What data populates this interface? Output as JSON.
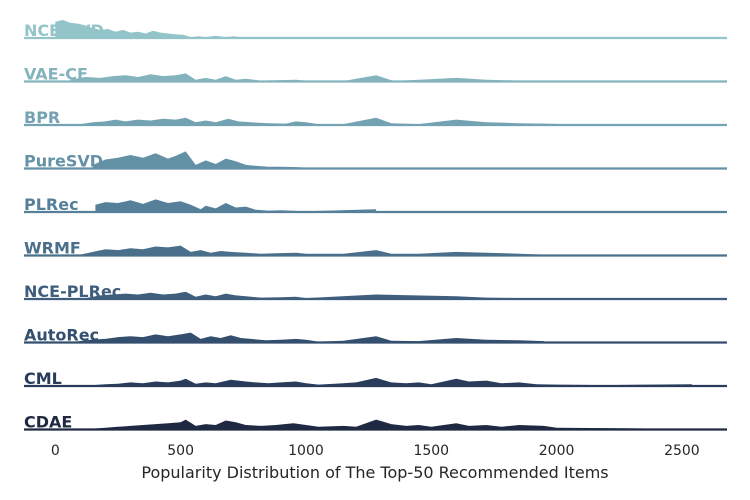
{
  "chart_data": {
    "type": "area",
    "subtype": "ridgeline",
    "xlabel": "Popularity Distribution of The Top-50 Recommended Items",
    "xlim": [
      -125,
      2680
    ],
    "xticks": [
      0,
      500,
      1000,
      1500,
      2000,
      2500
    ],
    "grid": false,
    "series": [
      {
        "name": "NCE-SVD",
        "color": "#93c4c9",
        "points": [
          [
            0,
            0.9
          ],
          [
            30,
            1.0
          ],
          [
            60,
            0.85
          ],
          [
            90,
            0.8
          ],
          [
            120,
            0.7
          ],
          [
            150,
            0.55
          ],
          [
            180,
            0.45
          ],
          [
            210,
            0.5
          ],
          [
            240,
            0.35
          ],
          [
            270,
            0.45
          ],
          [
            300,
            0.3
          ],
          [
            330,
            0.35
          ],
          [
            360,
            0.25
          ],
          [
            390,
            0.4
          ],
          [
            420,
            0.3
          ],
          [
            450,
            0.25
          ],
          [
            480,
            0.2
          ],
          [
            510,
            0.18
          ],
          [
            540,
            0.05
          ],
          [
            570,
            0.1
          ],
          [
            600,
            0.05
          ],
          [
            640,
            0.12
          ],
          [
            680,
            0.05
          ],
          [
            710,
            0.1
          ],
          [
            740,
            0.05
          ],
          [
            770,
            0
          ]
        ]
      },
      {
        "name": "VAE-CF",
        "color": "#83b3bd",
        "points": [
          [
            60,
            0.1
          ],
          [
            120,
            0.25
          ],
          [
            180,
            0.2
          ],
          [
            230,
            0.3
          ],
          [
            280,
            0.35
          ],
          [
            330,
            0.25
          ],
          [
            380,
            0.4
          ],
          [
            430,
            0.3
          ],
          [
            480,
            0.35
          ],
          [
            520,
            0.45
          ],
          [
            560,
            0.1
          ],
          [
            600,
            0.2
          ],
          [
            640,
            0.1
          ],
          [
            680,
            0.3
          ],
          [
            720,
            0.1
          ],
          [
            760,
            0.15
          ],
          [
            820,
            0.05
          ],
          [
            900,
            0.08
          ],
          [
            960,
            0.1
          ],
          [
            1020,
            0.03
          ],
          [
            1150,
            0.03
          ],
          [
            1280,
            0.35
          ],
          [
            1350,
            0.03
          ],
          [
            1600,
            0.2
          ],
          [
            1720,
            0.1
          ],
          [
            1850,
            0.05
          ],
          [
            1950,
            0.03
          ]
        ]
      },
      {
        "name": "BPR",
        "color": "#73a2b2",
        "points": [
          [
            100,
            0.05
          ],
          [
            150,
            0.15
          ],
          [
            200,
            0.2
          ],
          [
            240,
            0.3
          ],
          [
            280,
            0.2
          ],
          [
            330,
            0.3
          ],
          [
            380,
            0.25
          ],
          [
            430,
            0.35
          ],
          [
            480,
            0.3
          ],
          [
            520,
            0.4
          ],
          [
            560,
            0.15
          ],
          [
            600,
            0.25
          ],
          [
            640,
            0.15
          ],
          [
            690,
            0.35
          ],
          [
            730,
            0.2
          ],
          [
            780,
            0.15
          ],
          [
            850,
            0.1
          ],
          [
            920,
            0.08
          ],
          [
            960,
            0.2
          ],
          [
            1000,
            0.15
          ],
          [
            1050,
            0.05
          ],
          [
            1150,
            0.05
          ],
          [
            1280,
            0.4
          ],
          [
            1340,
            0.1
          ],
          [
            1450,
            0.05
          ],
          [
            1600,
            0.3
          ],
          [
            1720,
            0.15
          ],
          [
            1850,
            0.1
          ],
          [
            1950,
            0.08
          ],
          [
            2100,
            0.03
          ]
        ]
      },
      {
        "name": "PureSVD",
        "color": "#6391a6",
        "points": [
          [
            150,
            0.2
          ],
          [
            200,
            0.5
          ],
          [
            250,
            0.6
          ],
          [
            300,
            0.75
          ],
          [
            350,
            0.6
          ],
          [
            400,
            0.85
          ],
          [
            450,
            0.55
          ],
          [
            480,
            0.7
          ],
          [
            520,
            0.95
          ],
          [
            560,
            0.2
          ],
          [
            600,
            0.45
          ],
          [
            640,
            0.25
          ],
          [
            680,
            0.55
          ],
          [
            720,
            0.4
          ],
          [
            760,
            0.2
          ],
          [
            800,
            0.15
          ],
          [
            850,
            0.1
          ],
          [
            900,
            0.1
          ],
          [
            960,
            0.08
          ],
          [
            1000,
            0.05
          ]
        ]
      },
      {
        "name": "PLRec",
        "color": "#56809a",
        "points": [
          [
            160,
            0.4
          ],
          [
            200,
            0.55
          ],
          [
            250,
            0.5
          ],
          [
            300,
            0.65
          ],
          [
            350,
            0.45
          ],
          [
            400,
            0.7
          ],
          [
            450,
            0.5
          ],
          [
            500,
            0.6
          ],
          [
            540,
            0.4
          ],
          [
            580,
            0.15
          ],
          [
            600,
            0.35
          ],
          [
            640,
            0.2
          ],
          [
            680,
            0.5
          ],
          [
            720,
            0.25
          ],
          [
            760,
            0.3
          ],
          [
            800,
            0.12
          ],
          [
            850,
            0.08
          ],
          [
            900,
            0.1
          ],
          [
            960,
            0.06
          ],
          [
            1000,
            0.04
          ],
          [
            1280,
            0.15
          ]
        ]
      },
      {
        "name": "WRMF",
        "color": "#4a6f8b",
        "points": [
          [
            100,
            0.05
          ],
          [
            150,
            0.2
          ],
          [
            200,
            0.35
          ],
          [
            250,
            0.3
          ],
          [
            300,
            0.4
          ],
          [
            350,
            0.35
          ],
          [
            400,
            0.5
          ],
          [
            450,
            0.45
          ],
          [
            500,
            0.55
          ],
          [
            540,
            0.2
          ],
          [
            580,
            0.3
          ],
          [
            620,
            0.15
          ],
          [
            660,
            0.25
          ],
          [
            700,
            0.2
          ],
          [
            760,
            0.15
          ],
          [
            820,
            0.1
          ],
          [
            880,
            0.12
          ],
          [
            960,
            0.15
          ],
          [
            1000,
            0.1
          ],
          [
            1150,
            0.1
          ],
          [
            1280,
            0.3
          ],
          [
            1340,
            0.1
          ],
          [
            1450,
            0.1
          ],
          [
            1600,
            0.2
          ],
          [
            1720,
            0.15
          ],
          [
            1850,
            0.1
          ],
          [
            1950,
            0.05
          ]
        ]
      },
      {
        "name": "NCE-PLRec",
        "color": "#3f5e7e",
        "points": [
          [
            120,
            0.05
          ],
          [
            180,
            0.2
          ],
          [
            230,
            0.25
          ],
          [
            280,
            0.3
          ],
          [
            330,
            0.25
          ],
          [
            380,
            0.35
          ],
          [
            430,
            0.25
          ],
          [
            480,
            0.3
          ],
          [
            520,
            0.4
          ],
          [
            560,
            0.12
          ],
          [
            600,
            0.25
          ],
          [
            640,
            0.15
          ],
          [
            680,
            0.3
          ],
          [
            720,
            0.2
          ],
          [
            760,
            0.15
          ],
          [
            820,
            0.08
          ],
          [
            900,
            0.1
          ],
          [
            960,
            0.12
          ],
          [
            1000,
            0.05
          ],
          [
            1280,
            0.25
          ],
          [
            1600,
            0.15
          ],
          [
            1720,
            0.08
          ],
          [
            1850,
            0.05
          ]
        ]
      },
      {
        "name": "AutoRec",
        "color": "#344e6e",
        "points": [
          [
            80,
            0.05
          ],
          [
            140,
            0.15
          ],
          [
            200,
            0.2
          ],
          [
            250,
            0.3
          ],
          [
            300,
            0.35
          ],
          [
            350,
            0.3
          ],
          [
            400,
            0.45
          ],
          [
            450,
            0.35
          ],
          [
            500,
            0.45
          ],
          [
            540,
            0.55
          ],
          [
            580,
            0.2
          ],
          [
            620,
            0.35
          ],
          [
            660,
            0.25
          ],
          [
            700,
            0.4
          ],
          [
            740,
            0.25
          ],
          [
            780,
            0.2
          ],
          [
            840,
            0.12
          ],
          [
            900,
            0.15
          ],
          [
            960,
            0.2
          ],
          [
            1000,
            0.15
          ],
          [
            1050,
            0.05
          ],
          [
            1150,
            0.1
          ],
          [
            1280,
            0.35
          ],
          [
            1340,
            0.1
          ],
          [
            1450,
            0.08
          ],
          [
            1600,
            0.25
          ],
          [
            1720,
            0.15
          ],
          [
            1850,
            0.12
          ],
          [
            1950,
            0.08
          ]
        ]
      },
      {
        "name": "CML",
        "color": "#293c5c",
        "points": [
          [
            150,
            0.05
          ],
          [
            200,
            0.1
          ],
          [
            250,
            0.12
          ],
          [
            300,
            0.2
          ],
          [
            350,
            0.15
          ],
          [
            400,
            0.25
          ],
          [
            450,
            0.2
          ],
          [
            500,
            0.3
          ],
          [
            520,
            0.4
          ],
          [
            560,
            0.12
          ],
          [
            600,
            0.2
          ],
          [
            640,
            0.15
          ],
          [
            700,
            0.35
          ],
          [
            760,
            0.25
          ],
          [
            800,
            0.2
          ],
          [
            850,
            0.15
          ],
          [
            900,
            0.2
          ],
          [
            960,
            0.25
          ],
          [
            1000,
            0.15
          ],
          [
            1050,
            0.08
          ],
          [
            1150,
            0.15
          ],
          [
            1200,
            0.2
          ],
          [
            1280,
            0.45
          ],
          [
            1340,
            0.2
          ],
          [
            1400,
            0.15
          ],
          [
            1450,
            0.2
          ],
          [
            1500,
            0.1
          ],
          [
            1600,
            0.4
          ],
          [
            1650,
            0.25
          ],
          [
            1720,
            0.3
          ],
          [
            1780,
            0.15
          ],
          [
            1850,
            0.2
          ],
          [
            1920,
            0.1
          ],
          [
            2000,
            0.08
          ],
          [
            2200,
            0.05
          ],
          [
            2540,
            0.1
          ]
        ]
      },
      {
        "name": "CDAE",
        "color": "#1f2a42",
        "points": [
          [
            150,
            0.05
          ],
          [
            200,
            0.1
          ],
          [
            250,
            0.15
          ],
          [
            300,
            0.2
          ],
          [
            350,
            0.25
          ],
          [
            400,
            0.3
          ],
          [
            450,
            0.35
          ],
          [
            500,
            0.4
          ],
          [
            520,
            0.55
          ],
          [
            560,
            0.2
          ],
          [
            600,
            0.3
          ],
          [
            640,
            0.25
          ],
          [
            680,
            0.5
          ],
          [
            720,
            0.4
          ],
          [
            760,
            0.25
          ],
          [
            820,
            0.2
          ],
          [
            880,
            0.25
          ],
          [
            950,
            0.35
          ],
          [
            1000,
            0.25
          ],
          [
            1050,
            0.15
          ],
          [
            1150,
            0.2
          ],
          [
            1200,
            0.15
          ],
          [
            1280,
            0.55
          ],
          [
            1340,
            0.3
          ],
          [
            1400,
            0.2
          ],
          [
            1450,
            0.25
          ],
          [
            1500,
            0.15
          ],
          [
            1600,
            0.35
          ],
          [
            1650,
            0.2
          ],
          [
            1720,
            0.25
          ],
          [
            1780,
            0.15
          ],
          [
            1850,
            0.25
          ],
          [
            1950,
            0.2
          ],
          [
            2000,
            0.1
          ],
          [
            2200,
            0.08
          ],
          [
            2400,
            0.05
          ]
        ]
      }
    ]
  }
}
